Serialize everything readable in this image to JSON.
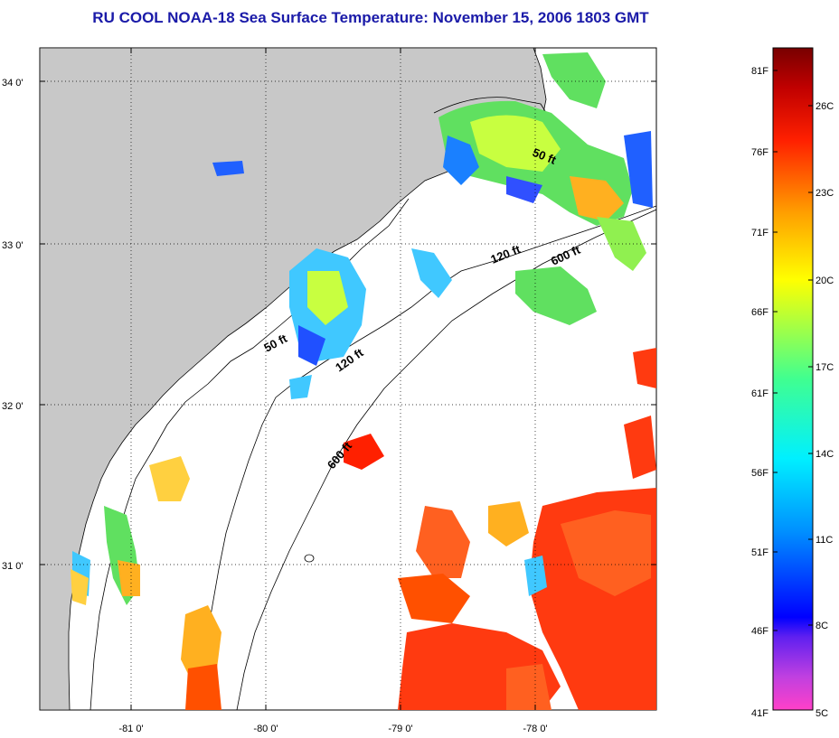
{
  "title": "RU COOL  NOAA-18  Sea Surface Temperature:  November 15, 2006 1803 GMT",
  "map": {
    "lat_labels": [
      "34 0'",
      "33 0'",
      "32 0'",
      "31 0'"
    ],
    "lon_labels": [
      "-81 0'",
      "-80 0'",
      "-79 0'",
      "-78 0'"
    ],
    "contour_labels": [
      "50 ft",
      "120 ft",
      "600 ft",
      "50 ft",
      "120 ft",
      "600 ft"
    ],
    "colors": {
      "land": "#c8c8c8",
      "ocean_no_data": "#ffffff",
      "coastline": "#000000"
    }
  },
  "colorbar": {
    "fahrenheit_labels": [
      "81F",
      "76F",
      "71F",
      "66F",
      "61F",
      "56F",
      "51F",
      "46F",
      "41F"
    ],
    "celsius_labels": [
      "26C",
      "23C",
      "20C",
      "17C",
      "14C",
      "11C",
      "8C",
      "5C"
    ],
    "colors": [
      "#ff40c8",
      "#8040e0",
      "#0000ff",
      "#0090ff",
      "#00e8ff",
      "#40ff80",
      "#c0ff30",
      "#ffff00",
      "#ffb000",
      "#ff6000",
      "#ff1000",
      "#c00000",
      "#800000"
    ]
  }
}
